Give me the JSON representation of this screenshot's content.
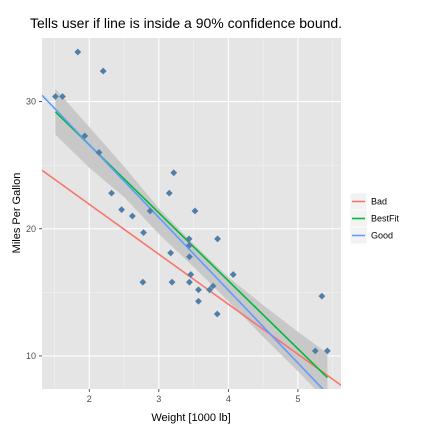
{
  "chart_data": {
    "type": "scatter",
    "title": "Tells user if line is inside a 90% confidence bound.",
    "xlabel": "Weight [1000 lb]",
    "ylabel": "Miles Per Gallon",
    "xlim": [
      1.32,
      5.62
    ],
    "ylim": [
      7.4,
      35.0
    ],
    "xticks": [
      2,
      3,
      4,
      5
    ],
    "yticks": [
      10,
      20,
      30
    ],
    "grid": true,
    "legend_position": "right",
    "colors": {
      "panel": "#e5e5e5",
      "grid_major": "#ffffff",
      "grid_minor": "#f2f2f2",
      "points": "#4f7fa8",
      "band": "#c6c6c6"
    },
    "points": {
      "x": [
        1.513,
        1.615,
        1.835,
        1.935,
        2.14,
        2.2,
        2.32,
        2.465,
        2.62,
        2.77,
        2.78,
        2.875,
        3.15,
        3.17,
        3.19,
        3.215,
        3.435,
        3.44,
        3.44,
        3.44,
        3.46,
        3.52,
        3.57,
        3.57,
        3.73,
        3.78,
        3.84,
        3.845,
        4.07,
        5.25,
        5.345,
        5.424
      ],
      "y": [
        30.4,
        30.4,
        33.9,
        27.3,
        26.0,
        32.4,
        22.8,
        21.5,
        21.0,
        15.8,
        19.7,
        21.4,
        22.8,
        18.1,
        15.8,
        24.4,
        19.2,
        15.8,
        17.8,
        18.7,
        16.4,
        21.4,
        15.2,
        14.3,
        15.2,
        15.5,
        13.3,
        19.2,
        16.4,
        10.4,
        14.7,
        10.4
      ]
    },
    "lines": [
      {
        "name": "Bad",
        "color": "#f8766d",
        "x": [
          1.32,
          5.62
        ],
        "y": [
          24.6,
          7.7
        ]
      },
      {
        "name": "BestFit",
        "color": "#00ba38",
        "x": [
          1.513,
          5.424
        ],
        "y": [
          29.2,
          8.3
        ]
      },
      {
        "name": "Good",
        "color": "#619cff",
        "x": [
          1.32,
          5.62
        ],
        "y": [
          30.5,
          5.9
        ]
      }
    ],
    "confidence_band": {
      "x": [
        1.513,
        2.0,
        2.5,
        3.0,
        3.5,
        4.0,
        4.5,
        5.0,
        5.424
      ],
      "lower": [
        27.4,
        24.8,
        22.5,
        19.6,
        17.0,
        14.3,
        11.5,
        8.8,
        6.4
      ],
      "upper": [
        31.0,
        28.0,
        24.9,
        21.6,
        18.8,
        16.2,
        14.0,
        11.9,
        10.2
      ]
    },
    "legend": [
      "Bad",
      "BestFit",
      "Good"
    ]
  }
}
